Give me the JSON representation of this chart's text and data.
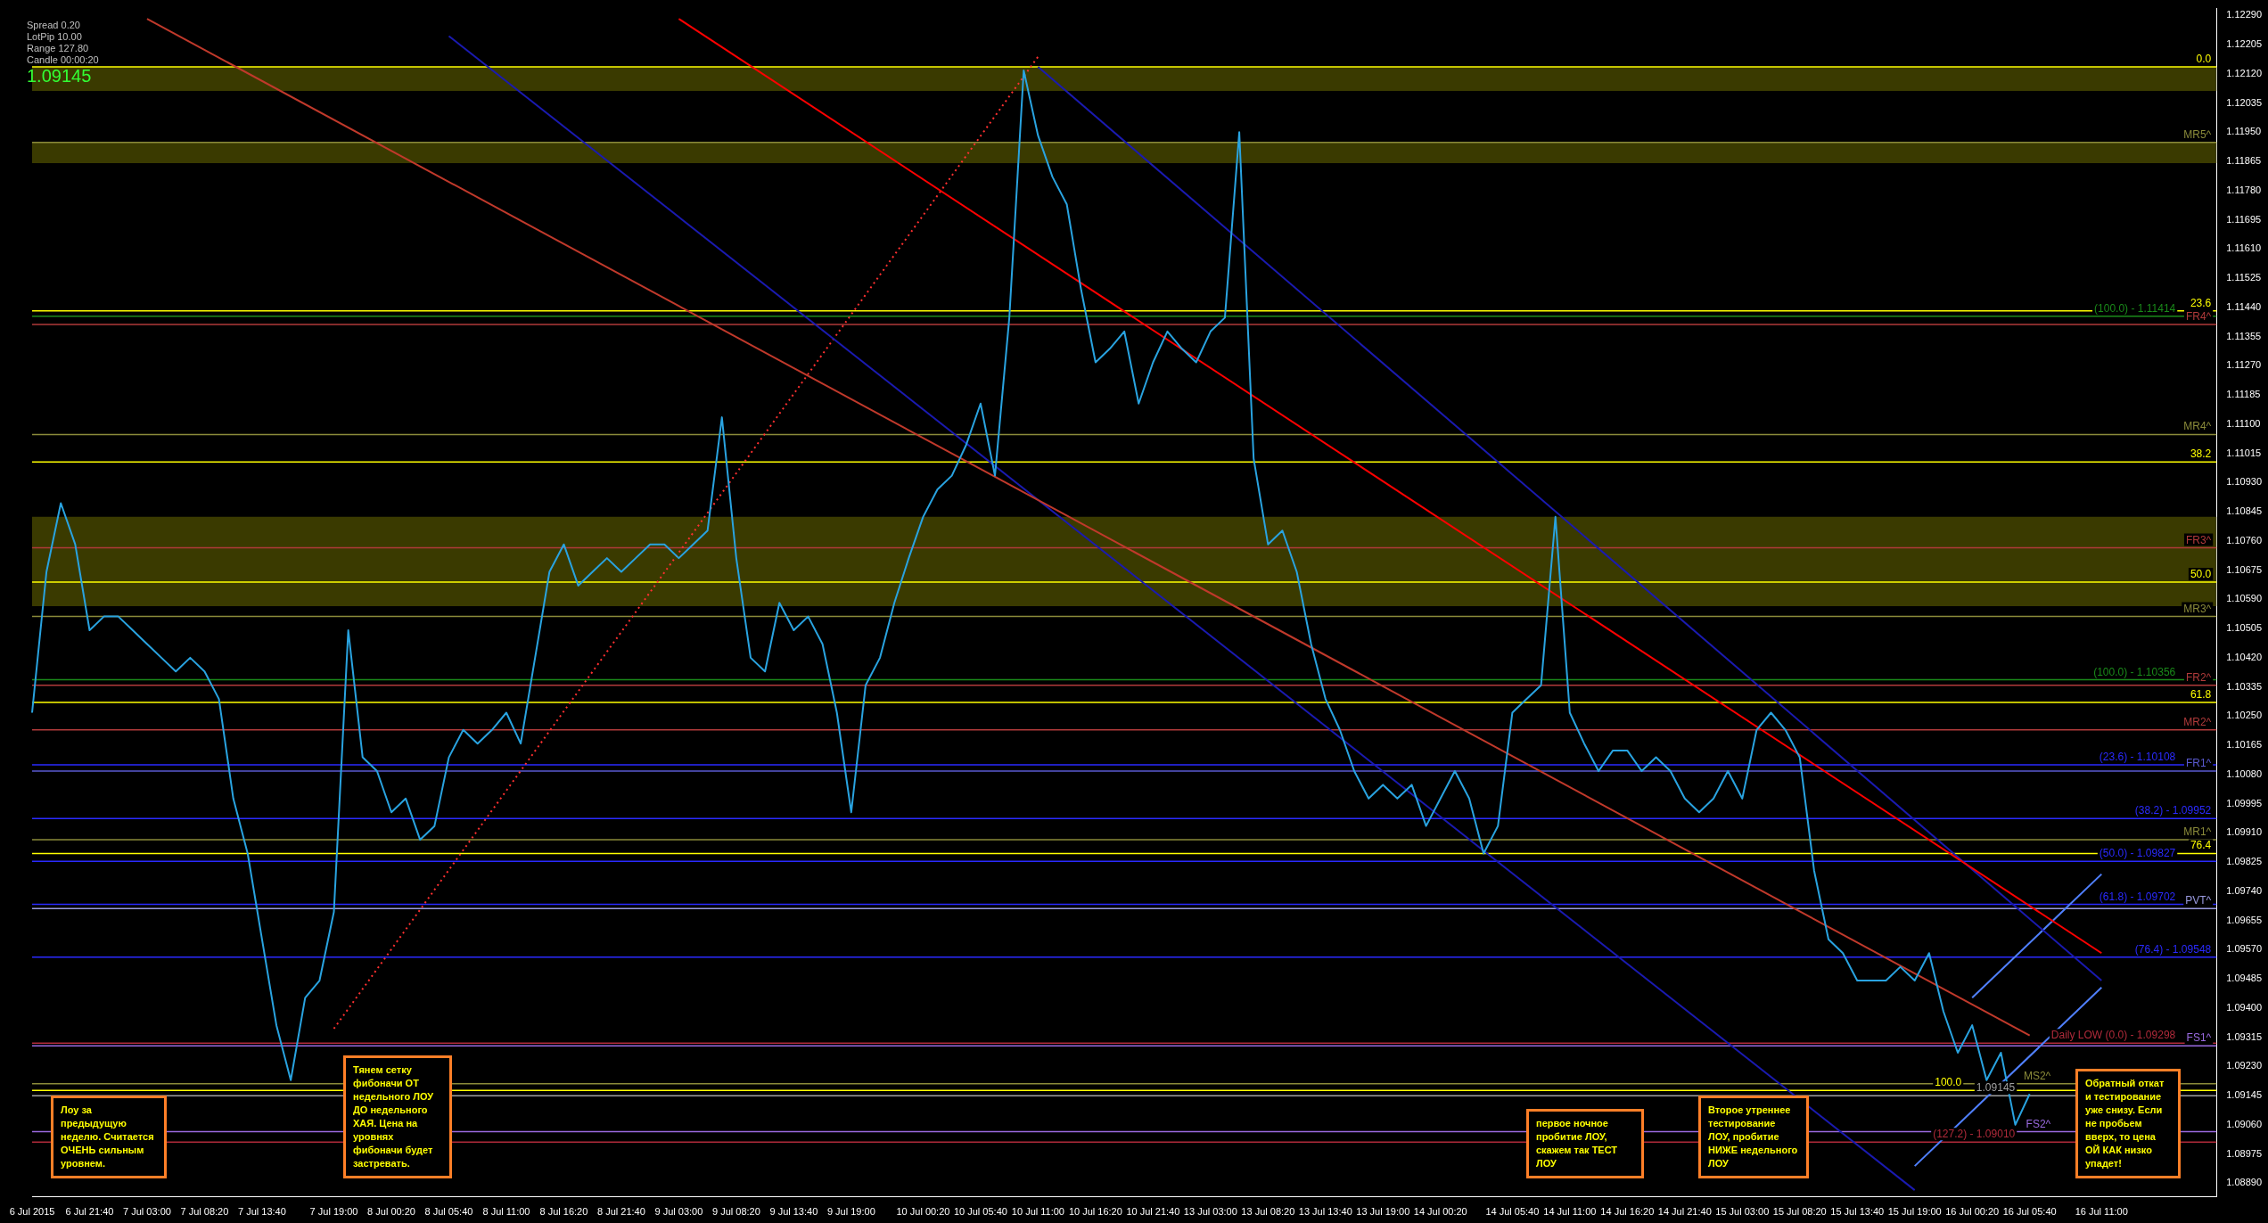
{
  "chart_data": {
    "type": "line",
    "legend": false,
    "grid": false,
    "marker": "none",
    "categories": [
      "6 Jul 2015",
      null,
      null,
      null,
      "6 Jul 21:40",
      null,
      null,
      null,
      "7 Jul 03:00",
      null,
      null,
      null,
      "7 Jul 08:20",
      null,
      null,
      null,
      "7 Jul 13:40",
      null,
      null,
      null,
      null,
      "7 Jul 19:00",
      null,
      null,
      null,
      "8 Jul 00:20",
      null,
      null,
      null,
      "8 Jul 05:40",
      null,
      null,
      null,
      "8 Jul 11:00",
      null,
      null,
      null,
      "8 Jul 16:20",
      null,
      null,
      null,
      "8 Jul 21:40",
      null,
      null,
      null,
      "9 Jul 03:00",
      null,
      null,
      null,
      "9 Jul 08:20",
      null,
      null,
      null,
      "9 Jul 13:40",
      null,
      null,
      null,
      "9 Jul 19:00",
      null,
      null,
      null,
      null,
      "10 Jul 00:20",
      null,
      null,
      null,
      "10 Jul 05:40",
      null,
      null,
      null,
      "10 Jul 11:00",
      null,
      null,
      null,
      "10 Jul 16:20",
      null,
      null,
      null,
      "10 Jul 21:40",
      null,
      null,
      null,
      "13 Jul 03:00",
      null,
      null,
      null,
      "13 Jul 08:20",
      null,
      null,
      null,
      "13 Jul 13:40",
      null,
      null,
      null,
      "13 Jul 19:00",
      null,
      null,
      null,
      "14 Jul 00:20",
      null,
      null,
      null,
      null,
      "14 Jul 05:40",
      null,
      null,
      null,
      "14 Jul 11:00",
      null,
      null,
      null,
      "14 Jul 16:20",
      null,
      null,
      null,
      "14 Jul 21:40",
      null,
      null,
      null,
      "15 Jul 03:00",
      null,
      null,
      null,
      "15 Jul 08:20",
      null,
      null,
      null,
      "15 Jul 13:40",
      null,
      null,
      null,
      "15 Jul 19:00",
      null,
      null,
      null,
      "16 Jul 00:20",
      null,
      null,
      null,
      "16 Jul 05:40",
      null,
      null,
      null,
      null,
      "16 Jul 11:00",
      null,
      null,
      null,
      null,
      null,
      null,
      null,
      null
    ],
    "ylim": [
      1.0885,
      1.1231
    ],
    "yticks": [
      {
        "value": 1.1229,
        "label": "1.12290"
      },
      {
        "value": 1.12205,
        "label": "1.12205"
      },
      {
        "value": 1.1212,
        "label": "1.12120"
      },
      {
        "value": 1.12035,
        "label": "1.12035"
      },
      {
        "value": 1.1195,
        "label": "1.11950"
      },
      {
        "value": 1.11865,
        "label": "1.11865"
      },
      {
        "value": 1.1178,
        "label": "1.11780"
      },
      {
        "value": 1.11695,
        "label": "1.11695"
      },
      {
        "value": 1.1161,
        "label": "1.11610"
      },
      {
        "value": 1.11525,
        "label": "1.11525"
      },
      {
        "value": 1.1144,
        "label": "1.11440"
      },
      {
        "value": 1.11355,
        "label": "1.11355"
      },
      {
        "value": 1.1127,
        "label": "1.11270"
      },
      {
        "value": 1.11185,
        "label": "1.11185"
      },
      {
        "value": 1.111,
        "label": "1.11100"
      },
      {
        "value": 1.11015,
        "label": "1.11015"
      },
      {
        "value": 1.1093,
        "label": "1.10930"
      },
      {
        "value": 1.10845,
        "label": "1.10845"
      },
      {
        "value": 1.1076,
        "label": "1.10760"
      },
      {
        "value": 1.10675,
        "label": "1.10675"
      },
      {
        "value": 1.1059,
        "label": "1.10590"
      },
      {
        "value": 1.10505,
        "label": "1.10505"
      },
      {
        "value": 1.1042,
        "label": "1.10420"
      },
      {
        "value": 1.10335,
        "label": "1.10335"
      },
      {
        "value": 1.1025,
        "label": "1.10250"
      },
      {
        "value": 1.10165,
        "label": "1.10165"
      },
      {
        "value": 1.1008,
        "label": "1.10080"
      },
      {
        "value": 1.09995,
        "label": "1.09995"
      },
      {
        "value": 1.0991,
        "label": "1.09910"
      },
      {
        "value": 1.09825,
        "label": "1.09825"
      },
      {
        "value": 1.0974,
        "label": "1.09740"
      },
      {
        "value": 1.09655,
        "label": "1.09655"
      },
      {
        "value": 1.0957,
        "label": "1.09570"
      },
      {
        "value": 1.09485,
        "label": "1.09485"
      },
      {
        "value": 1.094,
        "label": "1.09400"
      },
      {
        "value": 1.09315,
        "label": "1.09315"
      },
      {
        "value": 1.0923,
        "label": "1.09230"
      },
      {
        "value": 1.09145,
        "label": "1.09145"
      },
      {
        "value": 1.0906,
        "label": "1.09060"
      },
      {
        "value": 1.08975,
        "label": "1.08975"
      },
      {
        "value": 1.0889,
        "label": "1.08890"
      }
    ],
    "series": [
      {
        "color": "#29a3e0",
        "values": [
          1.1026,
          1.1067,
          1.1087,
          1.1075,
          1.105,
          1.1054,
          1.1054,
          1.105,
          1.1046,
          1.1042,
          1.1038,
          1.1042,
          1.1038,
          1.103,
          1.1001,
          1.0985,
          1.096,
          1.0935,
          1.0919,
          1.0943,
          1.0948,
          1.0968,
          1.105,
          1.1013,
          1.1009,
          1.0997,
          1.1001,
          1.0989,
          1.0993,
          1.1013,
          1.1021,
          1.1017,
          1.1021,
          1.1026,
          1.1017,
          1.1042,
          1.1067,
          1.1075,
          1.1063,
          1.1067,
          1.1071,
          1.1067,
          1.1071,
          1.1075,
          1.1075,
          1.1071,
          1.1075,
          1.1079,
          1.1112,
          1.1071,
          1.1042,
          1.1038,
          1.1058,
          1.105,
          1.1054,
          1.1046,
          1.1026,
          1.0997,
          1.1034,
          1.1042,
          1.1058,
          1.1071,
          1.1083,
          1.1091,
          1.1095,
          1.1104,
          1.1116,
          1.1095,
          1.1141,
          1.1213,
          1.1194,
          1.1182,
          1.1174,
          1.1149,
          1.1128,
          1.1132,
          1.1137,
          1.1116,
          1.1128,
          1.1137,
          1.1132,
          1.1128,
          1.1137,
          1.1141,
          1.1195,
          1.11,
          1.1075,
          1.1079,
          1.1067,
          1.1046,
          1.103,
          1.1021,
          1.1009,
          1.1001,
          1.1005,
          1.1001,
          1.1005,
          1.0993,
          1.1001,
          1.1009,
          1.1001,
          1.0985,
          1.0993,
          1.1026,
          1.103,
          1.1034,
          1.1083,
          1.1026,
          1.1017,
          1.1009,
          1.1015,
          1.1015,
          1.1009,
          1.1013,
          1.1009,
          1.1001,
          1.0997,
          1.1001,
          1.1009,
          1.1001,
          1.1021,
          1.1026,
          1.1021,
          1.1013,
          1.098,
          1.096,
          1.0956,
          1.0948,
          1.0948,
          1.0948,
          1.0952,
          1.0948,
          1.0956,
          1.0939,
          1.0927,
          1.0935,
          1.0919,
          1.0927,
          1.0906,
          1.0915,
          null,
          null,
          null,
          null,
          null,
          null,
          null,
          null,
          null,
          null,
          null,
          null,
          null
        ]
      },
      {
        "type": "line",
        "color": "#ff0000",
        "x": [
          "9 Jul 03:00",
          "16 Jul 11:00"
        ],
        "values": [
          1.1228,
          1.0956
        ]
      },
      {
        "type": "line",
        "color": "#c0392b",
        "x": [
          "7 Jul 03:00",
          "16 Jul 05:40"
        ],
        "values": [
          1.1228,
          1.0932
        ]
      },
      {
        "type": "line",
        "color": "#1a1ab0",
        "x": [
          "8 Jul 05:40",
          "15 Jul 19:00"
        ],
        "values": [
          1.1223,
          1.0887
        ]
      },
      {
        "type": "line",
        "color": "#1a1ab0",
        "x": [
          "10 Jul 11:00",
          "16 Jul 11:00"
        ],
        "values": [
          1.1214,
          1.0948
        ]
      },
      {
        "type": "line",
        "color": "#ff3030",
        "line_style": "dotted",
        "x": [
          "7 Jul 19:00",
          "10 Jul 11:00"
        ],
        "values": [
          1.0934,
          1.1217
        ]
      },
      {
        "type": "line",
        "color": "#5080ff",
        "x": [
          "15 Jul 19:00",
          "16 Jul 11:00"
        ],
        "values": [
          1.0894,
          1.0946
        ]
      },
      {
        "type": "line",
        "color": "#5080ff",
        "x": [
          "16 Jul 00:20",
          "16 Jul 11:00"
        ],
        "values": [
          1.0943,
          1.0979
        ]
      }
    ],
    "bands": [
      {
        "axis": "y",
        "from": 1.1207,
        "to": 1.1214,
        "color": "#3a3a00"
      },
      {
        "axis": "y",
        "from": 1.1186,
        "to": 1.1192,
        "color": "#3a3a00"
      },
      {
        "axis": "y",
        "from": 1.1057,
        "to": 1.1083,
        "color": "#3a3a00"
      }
    ],
    "ref_lines": [
      {
        "axis": "y",
        "value": 1.1214,
        "color": "#ffff00"
      },
      {
        "axis": "y",
        "value": 1.1143,
        "color": "#ffff00"
      },
      {
        "axis": "y",
        "value": 1.1099,
        "color": "#ffff00"
      },
      {
        "axis": "y",
        "value": 1.1064,
        "color": "#ffff00"
      },
      {
        "axis": "y",
        "value": 1.1029,
        "color": "#ffff00"
      },
      {
        "axis": "y",
        "value": 1.0985,
        "color": "#ffff00"
      },
      {
        "axis": "y",
        "value": 1.0916,
        "color": "#ffff00"
      },
      {
        "axis": "y",
        "value": 1.11414,
        "color": "#1a8a1a"
      },
      {
        "axis": "y",
        "value": 1.10356,
        "color": "#1a8a1a"
      },
      {
        "axis": "y",
        "value": 1.10108,
        "color": "#2a2aff"
      },
      {
        "axis": "y",
        "value": 1.09952,
        "color": "#2a2aff"
      },
      {
        "axis": "y",
        "value": 1.09827,
        "color": "#2a2aff"
      },
      {
        "axis": "y",
        "value": 1.09702,
        "color": "#2a2aff"
      },
      {
        "axis": "y",
        "value": 1.09548,
        "color": "#2a2aff"
      },
      {
        "axis": "y",
        "value": 1.09298,
        "color": "#b02a3a"
      },
      {
        "axis": "y",
        "value": 1.0901,
        "color": "#b02a3a"
      },
      {
        "axis": "y",
        "value": 1.1192,
        "label": "MR5^",
        "color": "#8b8b3a"
      },
      {
        "axis": "y",
        "value": 1.1139,
        "label": "FR4^",
        "color": "#b03a3a"
      },
      {
        "axis": "y",
        "value": 1.1107,
        "label": "MR4^",
        "color": "#8b8b3a"
      },
      {
        "axis": "y",
        "value": 1.1074,
        "label": "FR3^",
        "color": "#b03a3a"
      },
      {
        "axis": "y",
        "value": 1.1054,
        "label": "MR3^",
        "color": "#8b8b3a"
      },
      {
        "axis": "y",
        "value": 1.1034,
        "label": "FR2^",
        "color": "#b03a3a"
      },
      {
        "axis": "y",
        "value": 1.1021,
        "label": "MR2^",
        "color": "#b03a3a"
      },
      {
        "axis": "y",
        "value": 1.1009,
        "label": "FR1^",
        "color": "#5a5ad0"
      },
      {
        "axis": "y",
        "value": 1.0989,
        "label": "MR1^",
        "color": "#8b8b3a"
      },
      {
        "axis": "y",
        "value": 1.0969,
        "label": "PVT^",
        "color": "#9a9ae0"
      },
      {
        "axis": "y",
        "value": 1.0929,
        "label": "FS1^",
        "color": "#9a6ae0"
      },
      {
        "axis": "y",
        "value": 1.0918,
        "label": "MS2^",
        "color": "#8b8b3a"
      },
      {
        "axis": "y",
        "value": 1.0904,
        "label": "FS2^",
        "color": "#9a6ae0"
      },
      {
        "axis": "y",
        "value": 1.09145,
        "label": "1.09145",
        "color": "#a0a0a0"
      }
    ],
    "annotations": [
      "Лоу за предыдущую неделю. Считается ОЧЕНЬ сильным уровнем.",
      "Тянем сетку фибоначи ОТ недельного ЛОУ ДО недельного ХАЯ. Цена на уровнях фибоначи будет застревать.",
      "первое ночное пробитие ЛОУ, скажем так ТЕСТ ЛОУ",
      "Второе утреннее тестирование ЛОУ, пробитие НИЖЕ недельного ЛОУ",
      "Обратный откат и тестирование уже снизу. Если не пробьем вверх, то цена ОЙ КАК низко упадет!",
      "Spread  0.20",
      "LotPip  10.00",
      "Range  127.80",
      "Candle  00:00:20",
      "1.09145",
      {
        "text": "0.0",
        "y": 1.1214
      },
      {
        "text": "23.6",
        "y": 1.1143
      },
      {
        "text": "38.2",
        "y": 1.1099
      },
      {
        "text": "50.0",
        "y": 1.1064
      },
      {
        "text": "61.8",
        "y": 1.1029
      },
      {
        "text": "76.4",
        "y": 1.0985
      },
      {
        "text": "100.0",
        "y": 1.0916
      },
      {
        "text": "(100.0) - 1.11414",
        "y": 1.11414
      },
      {
        "text": "(100.0) - 1.10356",
        "y": 1.10356
      },
      {
        "text": "(23.6) - 1.10108",
        "y": 1.10108
      },
      {
        "text": "(38.2) - 1.09952",
        "y": 1.09952
      },
      {
        "text": "(50.0) - 1.09827",
        "y": 1.09827
      },
      {
        "text": "(61.8) - 1.09702",
        "y": 1.09702
      },
      {
        "text": "(76.4) - 1.09548",
        "y": 1.09548
      },
      {
        "text": "Daily LOW (0.0) - 1.09298",
        "y": 1.09298
      },
      {
        "text": "(127.2) - 1.09010",
        "y": 1.0901
      }
    ]
  }
}
